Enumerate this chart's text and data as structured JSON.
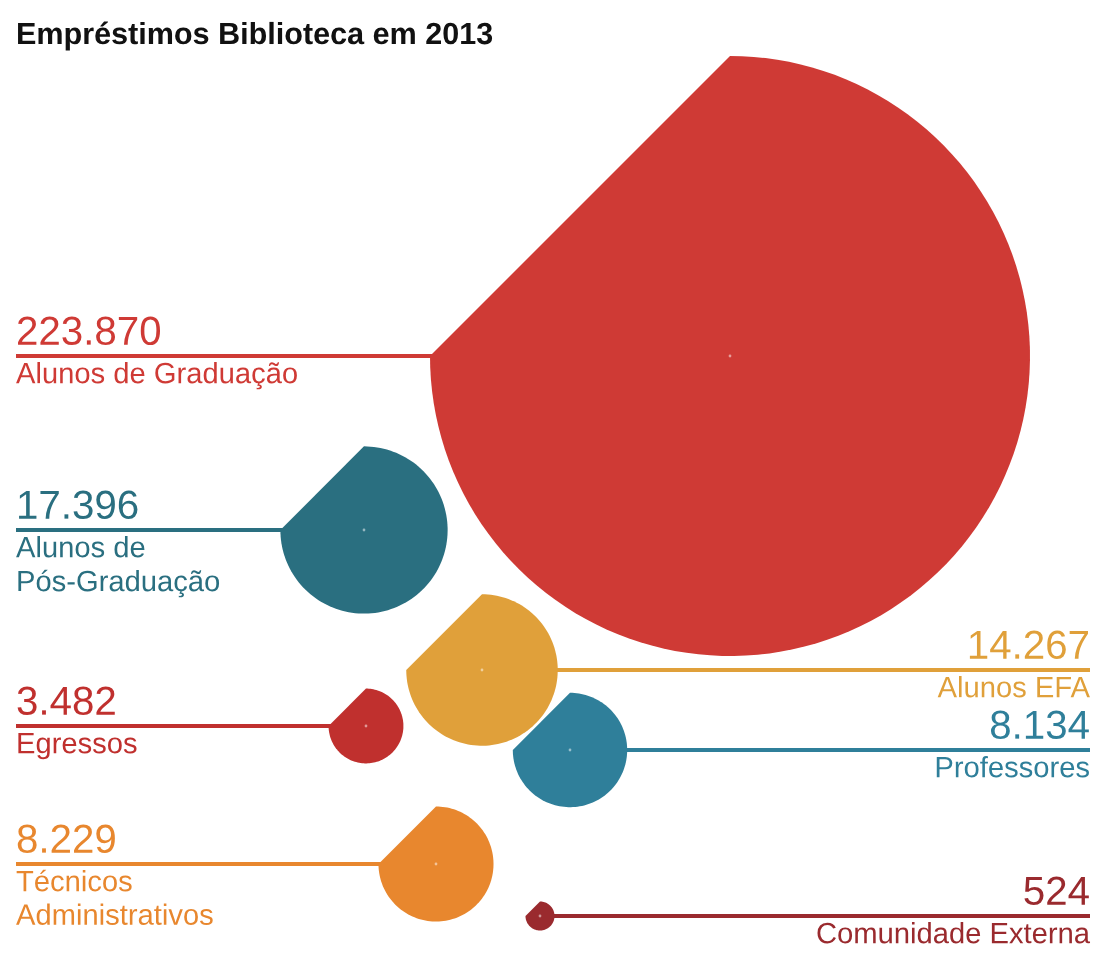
{
  "chart_data": {
    "type": "other",
    "title": "Empréstimos Biblioteca em 2013",
    "categories": [
      "Alunos de Graduação",
      "Alunos de\nPós-Graduação",
      "Alunos EFA",
      "Egressos",
      "Professores",
      "Técnicos\nAdministrativos",
      "Comunidade Externa"
    ],
    "values": [
      223870,
      17396,
      14267,
      3482,
      8134,
      8229,
      524
    ],
    "value_labels": [
      "223.870",
      "17.396",
      "14.267",
      "3.482",
      "8.134",
      "8.229",
      "524"
    ],
    "colors": [
      "#cf3a35",
      "#2a6f80",
      "#e0a03a",
      "#c0302e",
      "#2f7f9a",
      "#e8872e",
      "#9a2a2e"
    ]
  }
}
